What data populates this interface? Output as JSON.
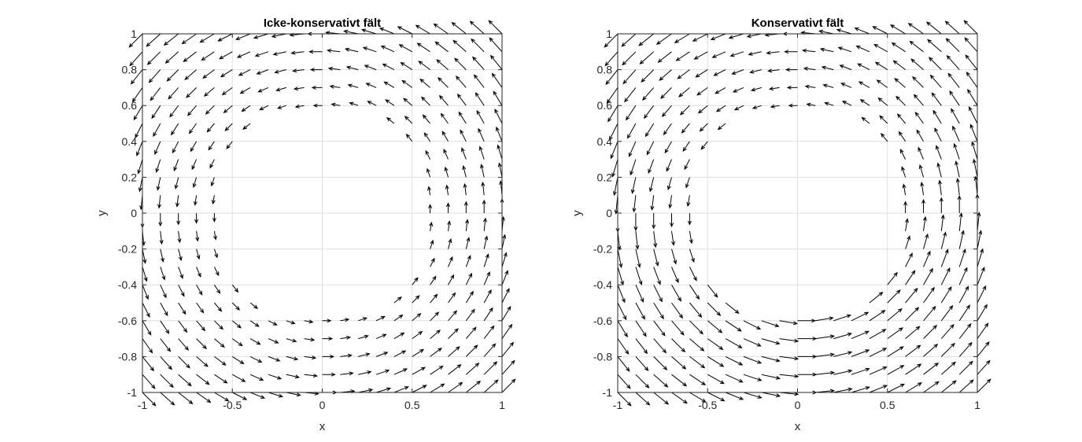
{
  "chart_data": [
    {
      "type": "quiver",
      "title": "Icke-konservativt fält",
      "xlabel": "x",
      "ylabel": "y",
      "xlim": [
        -1,
        1
      ],
      "ylim": [
        -1,
        1
      ],
      "xticks": [
        "-1",
        "-0.5",
        "0",
        "0.5",
        "1"
      ],
      "yticks": [
        "-1",
        "-0.8",
        "-0.6",
        "-0.4",
        "-0.2",
        "0",
        "0.2",
        "0.4",
        "0.6",
        "0.8",
        "1"
      ],
      "grid": true,
      "field": "circulating",
      "grid_points": 21,
      "blank_region": "disc of radius 0.6 around origin",
      "arrow_color": "#000000"
    },
    {
      "type": "quiver",
      "title": "Konservativt fält",
      "xlabel": "x",
      "ylabel": "y",
      "xlim": [
        -1,
        1
      ],
      "ylim": [
        -1,
        1
      ],
      "xticks": [
        "-1",
        "-0.5",
        "0",
        "0.5",
        "1"
      ],
      "yticks": [
        "-1",
        "-0.8",
        "-0.6",
        "-0.4",
        "-0.2",
        "0",
        "0.2",
        "0.4",
        "0.6",
        "0.8",
        "1"
      ],
      "grid": true,
      "field": "gradient",
      "grid_points": 21,
      "blank_region": "disc of radius 0.6 around origin",
      "arrow_color": "#000000"
    }
  ]
}
